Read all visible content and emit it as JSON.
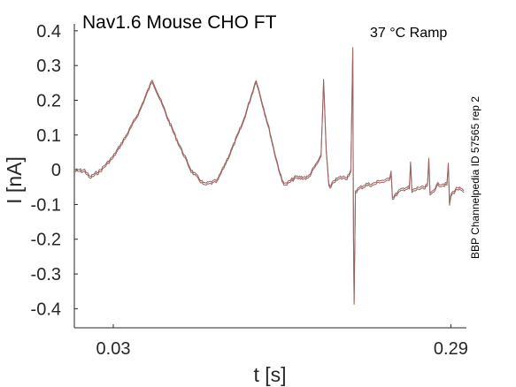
{
  "chart_data": {
    "type": "line",
    "title": "Nav1.6  Mouse  CHO FT",
    "annotation": "37 °C  Ramp",
    "side_label": "BBP Channelpedia ID 57565 rep 2",
    "xlabel": "t [s]",
    "ylabel": "I [nA]",
    "xlim": [
      0.0,
      0.302
    ],
    "ylim": [
      -0.455,
      0.42
    ],
    "x_ticks": [
      0.03,
      0.29
    ],
    "x_tick_labels": [
      "0.03",
      "0.29"
    ],
    "y_ticks": [
      0.4,
      0.3,
      0.2,
      0.1,
      0,
      -0.1,
      -0.2,
      -0.3,
      -0.4
    ],
    "y_tick_labels": [
      "0.4",
      "0.3",
      "0.2",
      "0.1",
      "0",
      "-0.1",
      "-0.2",
      "-0.3",
      "-0.4"
    ],
    "grid": false,
    "line_color": "#9b6361",
    "series": [
      {
        "x": [
          0.0,
          0.008,
          0.012,
          0.02,
          0.03,
          0.04,
          0.05,
          0.06,
          0.07,
          0.072,
          0.08,
          0.09,
          0.1,
          0.11,
          0.12,
          0.13,
          0.14,
          0.15,
          0.155,
          0.16,
          0.163,
          0.17,
          0.18,
          0.19,
          0.192,
          0.194,
          0.196,
          0.197,
          0.2,
          0.205,
          0.21,
          0.213,
          0.2145,
          0.215,
          0.2155,
          0.2165,
          0.22,
          0.225,
          0.23,
          0.235,
          0.24,
          0.243,
          0.244,
          0.245,
          0.25,
          0.255,
          0.258,
          0.259,
          0.26,
          0.265,
          0.27,
          0.272,
          0.273,
          0.274,
          0.278,
          0.28,
          0.282,
          0.285,
          0.287,
          0.288,
          0.289,
          0.29,
          0.295,
          0.3
        ],
        "y": [
          0.0,
          0.0,
          -0.02,
          0.0,
          0.04,
          0.1,
          0.17,
          0.26,
          0.17,
          0.15,
          0.08,
          0.0,
          -0.04,
          -0.03,
          0.05,
          0.14,
          0.26,
          0.12,
          0.04,
          -0.03,
          -0.04,
          -0.02,
          -0.02,
          0.04,
          0.26,
          0.06,
          -0.04,
          -0.05,
          -0.03,
          -0.02,
          -0.02,
          0.0,
          0.35,
          -0.2,
          -0.38,
          -0.06,
          -0.05,
          -0.04,
          -0.04,
          -0.03,
          -0.03,
          -0.02,
          0.0,
          -0.08,
          -0.06,
          -0.05,
          -0.05,
          0.02,
          -0.06,
          -0.05,
          -0.05,
          -0.04,
          0.03,
          -0.07,
          -0.05,
          -0.04,
          -0.04,
          -0.04,
          -0.04,
          0.02,
          -0.1,
          -0.07,
          -0.05,
          -0.06
        ]
      }
    ]
  }
}
